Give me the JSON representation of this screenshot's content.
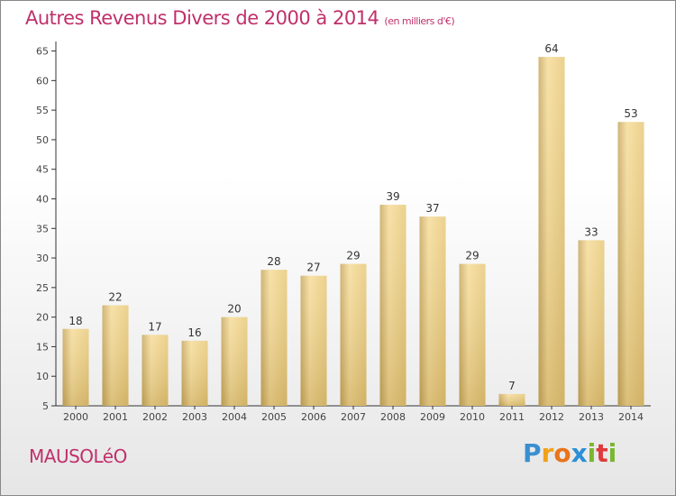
{
  "header": {
    "title": "Autres Revenus Divers de 2000 à 2014",
    "subtitle": "(en milliers d'€)"
  },
  "commune_name": "MAUSOLéO",
  "brand": {
    "letters": [
      "P",
      "r",
      "o",
      "x",
      "i",
      "t",
      "i"
    ],
    "colors": [
      "#3a8fd1",
      "#f0a21b",
      "#e8741c",
      "#2a8fd6",
      "#7ab62f",
      "#e03a3a",
      "#7ab62f"
    ]
  },
  "chart_data": {
    "type": "bar",
    "title": "Autres Revenus Divers de 2000 à 2014",
    "subtitle": "(en milliers d'€)",
    "categories": [
      "2000",
      "2001",
      "2002",
      "2003",
      "2004",
      "2005",
      "2006",
      "2007",
      "2008",
      "2009",
      "2010",
      "2011",
      "2012",
      "2013",
      "2014"
    ],
    "values": [
      18,
      22,
      17,
      16,
      20,
      28,
      27,
      29,
      39,
      37,
      29,
      7,
      64,
      33,
      53
    ],
    "ylim": [
      5,
      66
    ],
    "yticks": [
      5,
      10,
      15,
      20,
      25,
      30,
      35,
      40,
      45,
      50,
      55,
      60,
      65
    ],
    "grid": false,
    "colors": {
      "bar_light": "#f6dc99",
      "bar_dark": "#c8a860",
      "text_accent": "#c0306a"
    }
  }
}
